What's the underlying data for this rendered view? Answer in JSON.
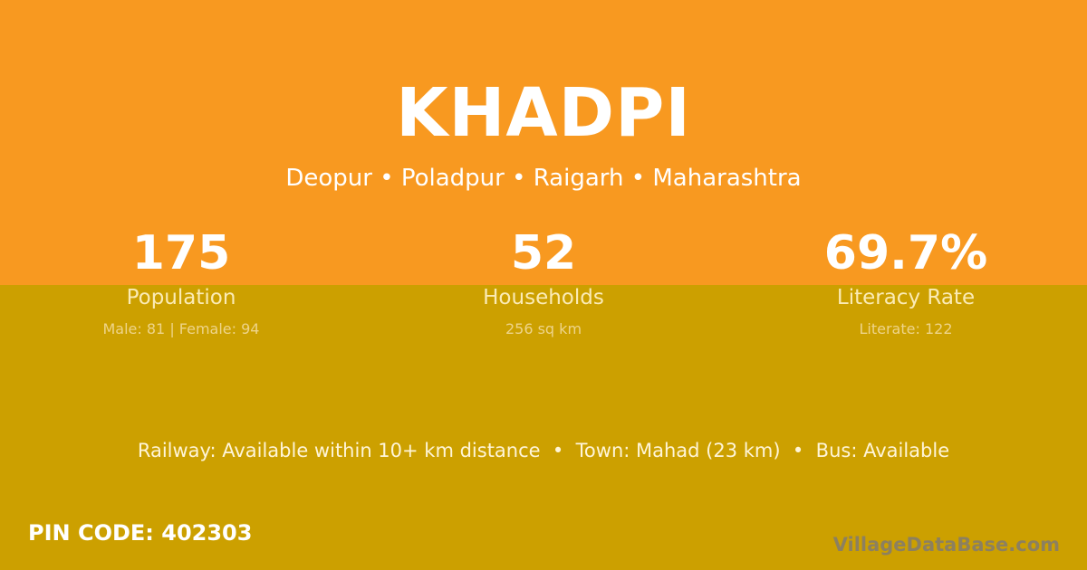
{
  "village": {
    "name": "KHADPI",
    "location": "Deopur • Poladpur • Raigarh • Maharashtra"
  },
  "stats": [
    {
      "value": "175",
      "label": "Population",
      "detail": "Male: 81 | Female: 94"
    },
    {
      "value": "52",
      "label": "Households",
      "detail": "256 sq km"
    },
    {
      "value": "69.7%",
      "label": "Literacy Rate",
      "detail": "Literate: 122"
    }
  ],
  "transport": "Railway: Available within 10+ km distance  •  Town: Mahad (23 km)  •  Bus: Available",
  "pin": "PIN CODE: 402303",
  "watermark": "VillageDataBase.com",
  "colors": {
    "top": "#F89920",
    "bottom": "#CCA000"
  }
}
